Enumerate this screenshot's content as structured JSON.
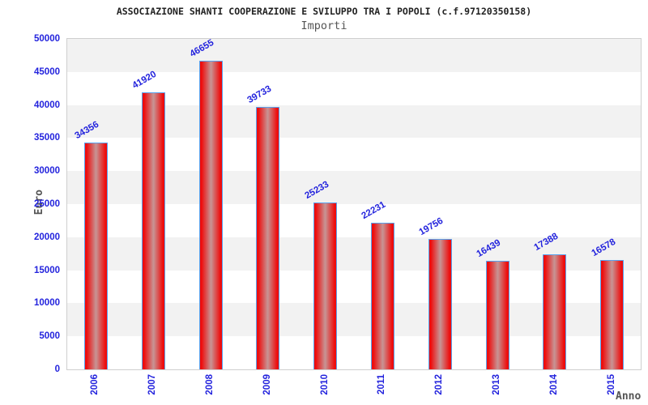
{
  "title": "ASSOCIAZIONE SHANTI COOPERAZIONE E SVILUPPO TRA I POPOLI (c.f.97120350158)",
  "subtitle": "Importi",
  "chart_data": {
    "type": "bar",
    "title": "ASSOCIAZIONE SHANTI COOPERAZIONE E SVILUPPO TRA I POPOLI (c.f.97120350158)",
    "subtitle": "Importi",
    "categories": [
      "2006",
      "2007",
      "2008",
      "2009",
      "2010",
      "2011",
      "2012",
      "2013",
      "2014",
      "2015"
    ],
    "values": [
      34356,
      41920,
      46655,
      39733,
      25233,
      22231,
      19756,
      16439,
      17388,
      16578
    ],
    "xlabel": "Anno",
    "ylabel": "Euro",
    "ylim": [
      0,
      50000
    ],
    "ytick_step": 5000,
    "yticks": [
      0,
      5000,
      10000,
      15000,
      20000,
      25000,
      30000,
      35000,
      40000,
      45000,
      50000
    ],
    "grid": "alternating horizontal bands, gray on top band",
    "legend_position": "none",
    "bar_value_labels_rotation_deg": -30,
    "x_tick_rotation_deg": -90
  },
  "colors": {
    "label_blue": "#2323dd",
    "bar_red": "#ee0d0d",
    "bar_center": "#c79595",
    "bar_border": "#58a2ee",
    "band_gray": "#f2f2f2",
    "band_white": "#ffffff",
    "plot_border": "#cfcfcf",
    "title_color": "#222222",
    "subtitle_color": "#555555",
    "axis_title_color": "#555555"
  }
}
